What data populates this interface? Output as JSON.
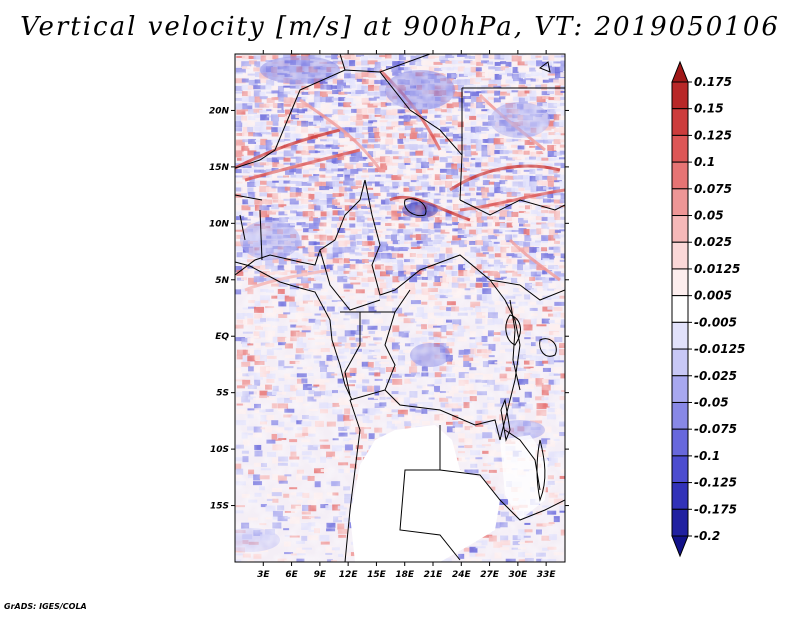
{
  "chart_data": {
    "type": "heatmap",
    "title": "Vertical velocity [m/s] at 900hPa, VT: 2019050106",
    "variable": "Vertical velocity",
    "units": "m/s",
    "level": "900hPa",
    "valid_time": "2019050106",
    "xlim": [
      0,
      35
    ],
    "ylim": [
      -20,
      25
    ],
    "x_ticks": [
      {
        "value": 3,
        "label": "3E"
      },
      {
        "value": 6,
        "label": "6E"
      },
      {
        "value": 9,
        "label": "9E"
      },
      {
        "value": 12,
        "label": "12E"
      },
      {
        "value": 15,
        "label": "15E"
      },
      {
        "value": 18,
        "label": "18E"
      },
      {
        "value": 21,
        "label": "21E"
      },
      {
        "value": 24,
        "label": "24E"
      },
      {
        "value": 27,
        "label": "27E"
      },
      {
        "value": 30,
        "label": "30E"
      },
      {
        "value": 33,
        "label": "33E"
      }
    ],
    "y_ticks": [
      {
        "value": 20,
        "label": "20N"
      },
      {
        "value": 15,
        "label": "15N"
      },
      {
        "value": 10,
        "label": "10N"
      },
      {
        "value": 5,
        "label": "5N"
      },
      {
        "value": 0,
        "label": "EQ"
      },
      {
        "value": -5,
        "label": "5S"
      },
      {
        "value": -10,
        "label": "10S"
      },
      {
        "value": -15,
        "label": "15S"
      }
    ],
    "colorbar": {
      "levels": [
        "0.175",
        "0.15",
        "0.125",
        "0.1",
        "0.075",
        "0.05",
        "0.025",
        "0.0125",
        "0.005",
        "-0.005",
        "-0.0125",
        "-0.025",
        "-0.05",
        "-0.075",
        "-0.1",
        "-0.125",
        "-0.175",
        "-0.2"
      ],
      "colors": [
        "#a01818",
        "#b82828",
        "#cc3c3c",
        "#dc5656",
        "#e67474",
        "#ee9696",
        "#f5b8b8",
        "#fbd8d8",
        "#fdeeee",
        "#ffffff",
        "#e2e2fb",
        "#c8c8f6",
        "#a8a8ef",
        "#8888e6",
        "#6868dc",
        "#4c4cd0",
        "#3232b8",
        "#2020a0",
        "#12128a"
      ]
    }
  },
  "footer": {
    "credit": "GrADS: IGES/COLA"
  }
}
